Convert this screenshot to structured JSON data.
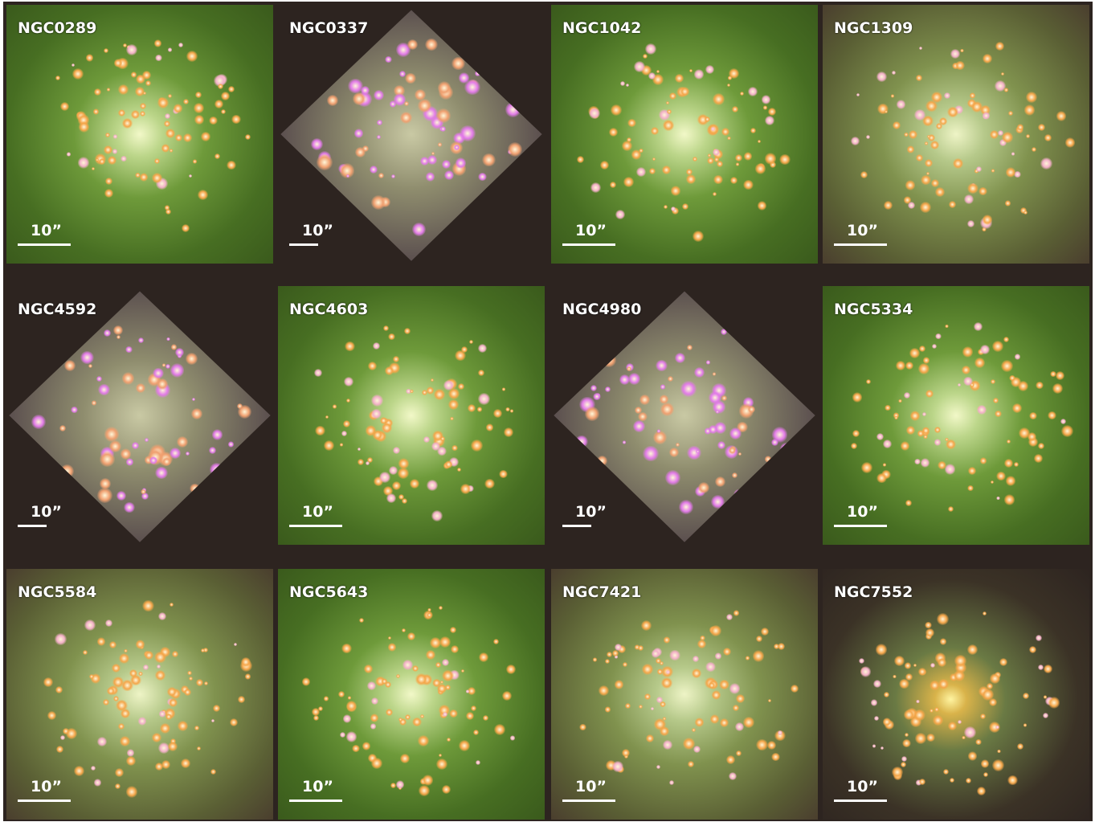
{
  "panels": [
    {
      "name": "NGC0289",
      "scale": "10”"
    },
    {
      "name": "NGC0337",
      "scale": "10”"
    },
    {
      "name": "NGC1042",
      "scale": "10”"
    },
    {
      "name": "NGC1309",
      "scale": "10”"
    },
    {
      "name": "NGC4592",
      "scale": "10”"
    },
    {
      "name": "NGC4603",
      "scale": "10”"
    },
    {
      "name": "NGC4980",
      "scale": "10”"
    },
    {
      "name": "NGC5334",
      "scale": "10”"
    },
    {
      "name": "NGC5584",
      "scale": "10”"
    },
    {
      "name": "NGC5643",
      "scale": "10”"
    },
    {
      "name": "NGC7421",
      "scale": "10”"
    },
    {
      "name": "NGC7552",
      "scale": "10”"
    }
  ]
}
